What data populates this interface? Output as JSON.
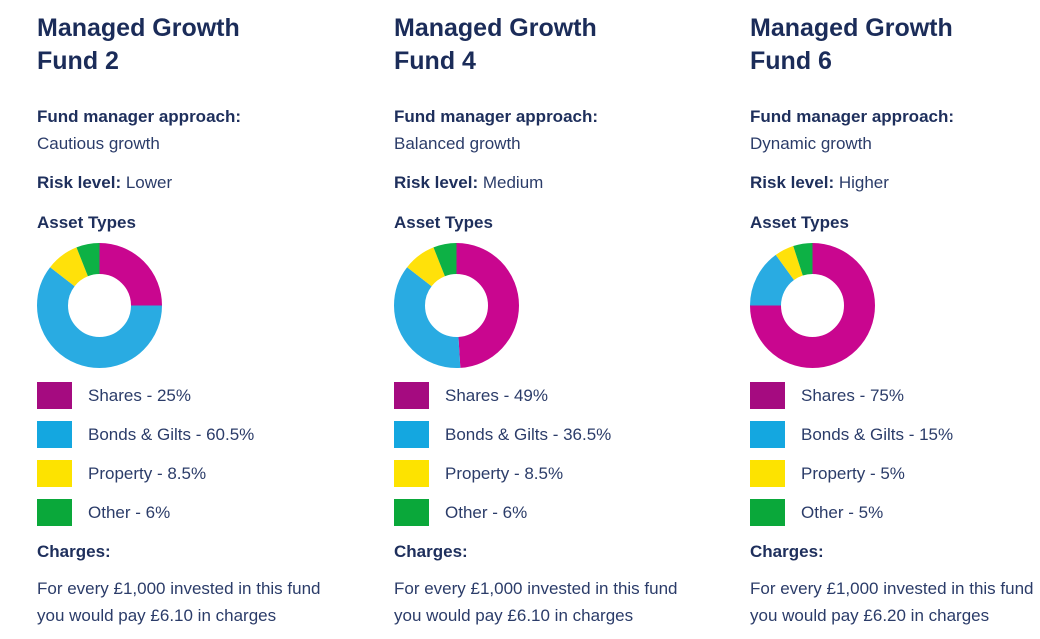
{
  "page": {
    "background": "#ffffff"
  },
  "colors": {
    "heading_text": "#1b2c59",
    "body_text": "#2b3c69",
    "chart_segments": [
      "#c9068f",
      "#29abe2",
      "#ffe10a",
      "#0db145"
    ],
    "legend_swatches": [
      "#a50b80",
      "#14a7e0",
      "#fde300",
      "#0aa83a"
    ]
  },
  "asset_names": [
    "Shares",
    "Bonds & Gilts",
    "Property",
    "Other"
  ],
  "funds": [
    {
      "title": "Managed Growth\nFund 2",
      "approach_label": "Fund manager approach:",
      "approach": "Cautious growth",
      "risk_label": "Risk level:",
      "risk": "Lower",
      "asset_types_label": "Asset Types",
      "legend": [
        "Shares - 25%",
        "Bonds & Gilts - 60.5%",
        "Property - 8.5%",
        "Other - 6%"
      ],
      "charges_label": "Charges:",
      "charges": "For every £1,000 invested in this fund\nyou would pay £6.10 in charges"
    },
    {
      "title": "Managed Growth\nFund 4",
      "approach_label": "Fund manager approach:",
      "approach": "Balanced growth",
      "risk_label": "Risk level:",
      "risk": "Medium",
      "asset_types_label": "Asset Types",
      "legend": [
        "Shares - 49%",
        "Bonds & Gilts - 36.5%",
        "Property - 8.5%",
        "Other - 6%"
      ],
      "charges_label": "Charges:",
      "charges": "For every £1,000 invested in this fund\nyou would pay £6.10 in charges"
    },
    {
      "title": "Managed Growth\nFund 6",
      "approach_label": "Fund manager approach:",
      "approach": "Dynamic growth",
      "risk_label": "Risk level:",
      "risk": "Higher",
      "asset_types_label": "Asset Types",
      "legend": [
        "Shares - 75%",
        "Bonds & Gilts - 15%",
        "Property - 5%",
        "Other - 5%"
      ],
      "charges_label": "Charges:",
      "charges": "For every £1,000 invested in this fund\nyou would pay £6.20 in charges"
    }
  ],
  "chart_data": [
    {
      "type": "pie",
      "title": "Managed Growth Fund 2 - Asset Types",
      "labels": [
        "Shares",
        "Bonds & Gilts",
        "Property",
        "Other"
      ],
      "values": [
        25,
        60.5,
        8.5,
        6
      ],
      "donut": true,
      "start": "12 o'clock",
      "direction": "clockwise",
      "legend_position": "below"
    },
    {
      "type": "pie",
      "title": "Managed Growth Fund 4 - Asset Types",
      "labels": [
        "Shares",
        "Bonds & Gilts",
        "Property",
        "Other"
      ],
      "values": [
        49,
        36.5,
        8.5,
        6
      ],
      "donut": true,
      "start": "12 o'clock",
      "direction": "clockwise",
      "legend_position": "below"
    },
    {
      "type": "pie",
      "title": "Managed Growth Fund 6 - Asset Types",
      "labels": [
        "Shares",
        "Bonds & Gilts",
        "Property",
        "Other"
      ],
      "values": [
        75,
        15,
        5,
        5
      ],
      "donut": true,
      "start": "12 o'clock",
      "direction": "clockwise",
      "legend_position": "below"
    }
  ]
}
